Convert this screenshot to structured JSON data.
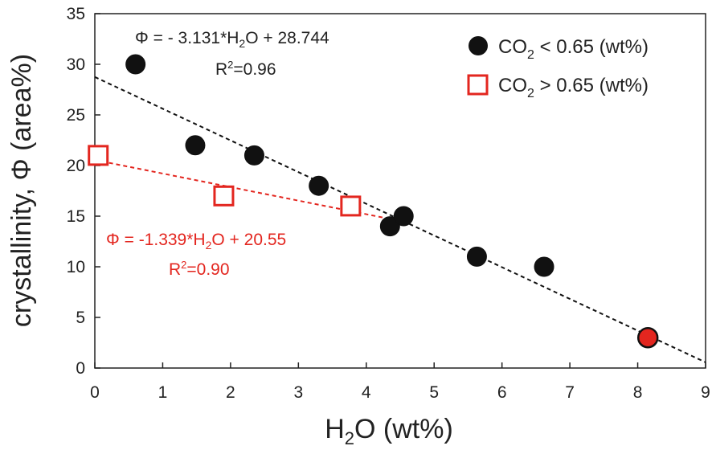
{
  "chart_data": {
    "type": "scatter",
    "xlabel": {
      "pre": "H",
      "sub": "2",
      "post": "O (wt%)"
    },
    "ylabel": "crystallinity, Φ (area%)",
    "xlim": [
      0,
      9
    ],
    "ylim": [
      0,
      35
    ],
    "x_ticks": [
      "0",
      "1",
      "2",
      "3",
      "4",
      "5",
      "6",
      "7",
      "8",
      "9"
    ],
    "y_ticks": [
      "0",
      "5",
      "10",
      "15",
      "20",
      "25",
      "30",
      "35"
    ],
    "grid": false,
    "legend_position": "top-right",
    "series": [
      {
        "name": {
          "pre": "CO",
          "sub": "2",
          "post": " < 0.65 (wt%)"
        },
        "marker": "filled-circle",
        "color": "#111111",
        "points": [
          {
            "x": 0.6,
            "y": 30
          },
          {
            "x": 1.48,
            "y": 22
          },
          {
            "x": 2.35,
            "y": 21
          },
          {
            "x": 3.3,
            "y": 18
          },
          {
            "x": 4.35,
            "y": 14
          },
          {
            "x": 4.55,
            "y": 15
          },
          {
            "x": 5.63,
            "y": 11
          },
          {
            "x": 6.62,
            "y": 10
          },
          {
            "x": 8.15,
            "y": 3
          }
        ],
        "highlight": {
          "x": 8.15,
          "y": 3,
          "color": "#e3261f"
        }
      },
      {
        "name": {
          "pre": "CO",
          "sub": "2",
          "post": " > 0.65 (wt%)"
        },
        "marker": "open-square",
        "color": "#e3261f",
        "points": [
          {
            "x": 0.05,
            "y": 21
          },
          {
            "x": 1.9,
            "y": 17
          },
          {
            "x": 3.77,
            "y": 16
          }
        ]
      }
    ],
    "fits": [
      {
        "slope": -3.131,
        "intercept": 28.744,
        "x_range": [
          0,
          9
        ],
        "color": "#111111",
        "equation": {
          "pre": "Φ = - 3.131*H",
          "sub": "2",
          "post": "O + 28.744"
        },
        "r2": {
          "pre": "R",
          "sup": "2",
          "post": "=0.96"
        }
      },
      {
        "slope": -1.339,
        "intercept": 20.55,
        "x_range": [
          0,
          4.6
        ],
        "color": "#e3261f",
        "equation": {
          "pre": "Φ = -1.339*H",
          "sub": "2",
          "post": "O + 20.55"
        },
        "r2": {
          "pre": "R",
          "sup": "2",
          "post": "=0.90"
        }
      }
    ]
  }
}
